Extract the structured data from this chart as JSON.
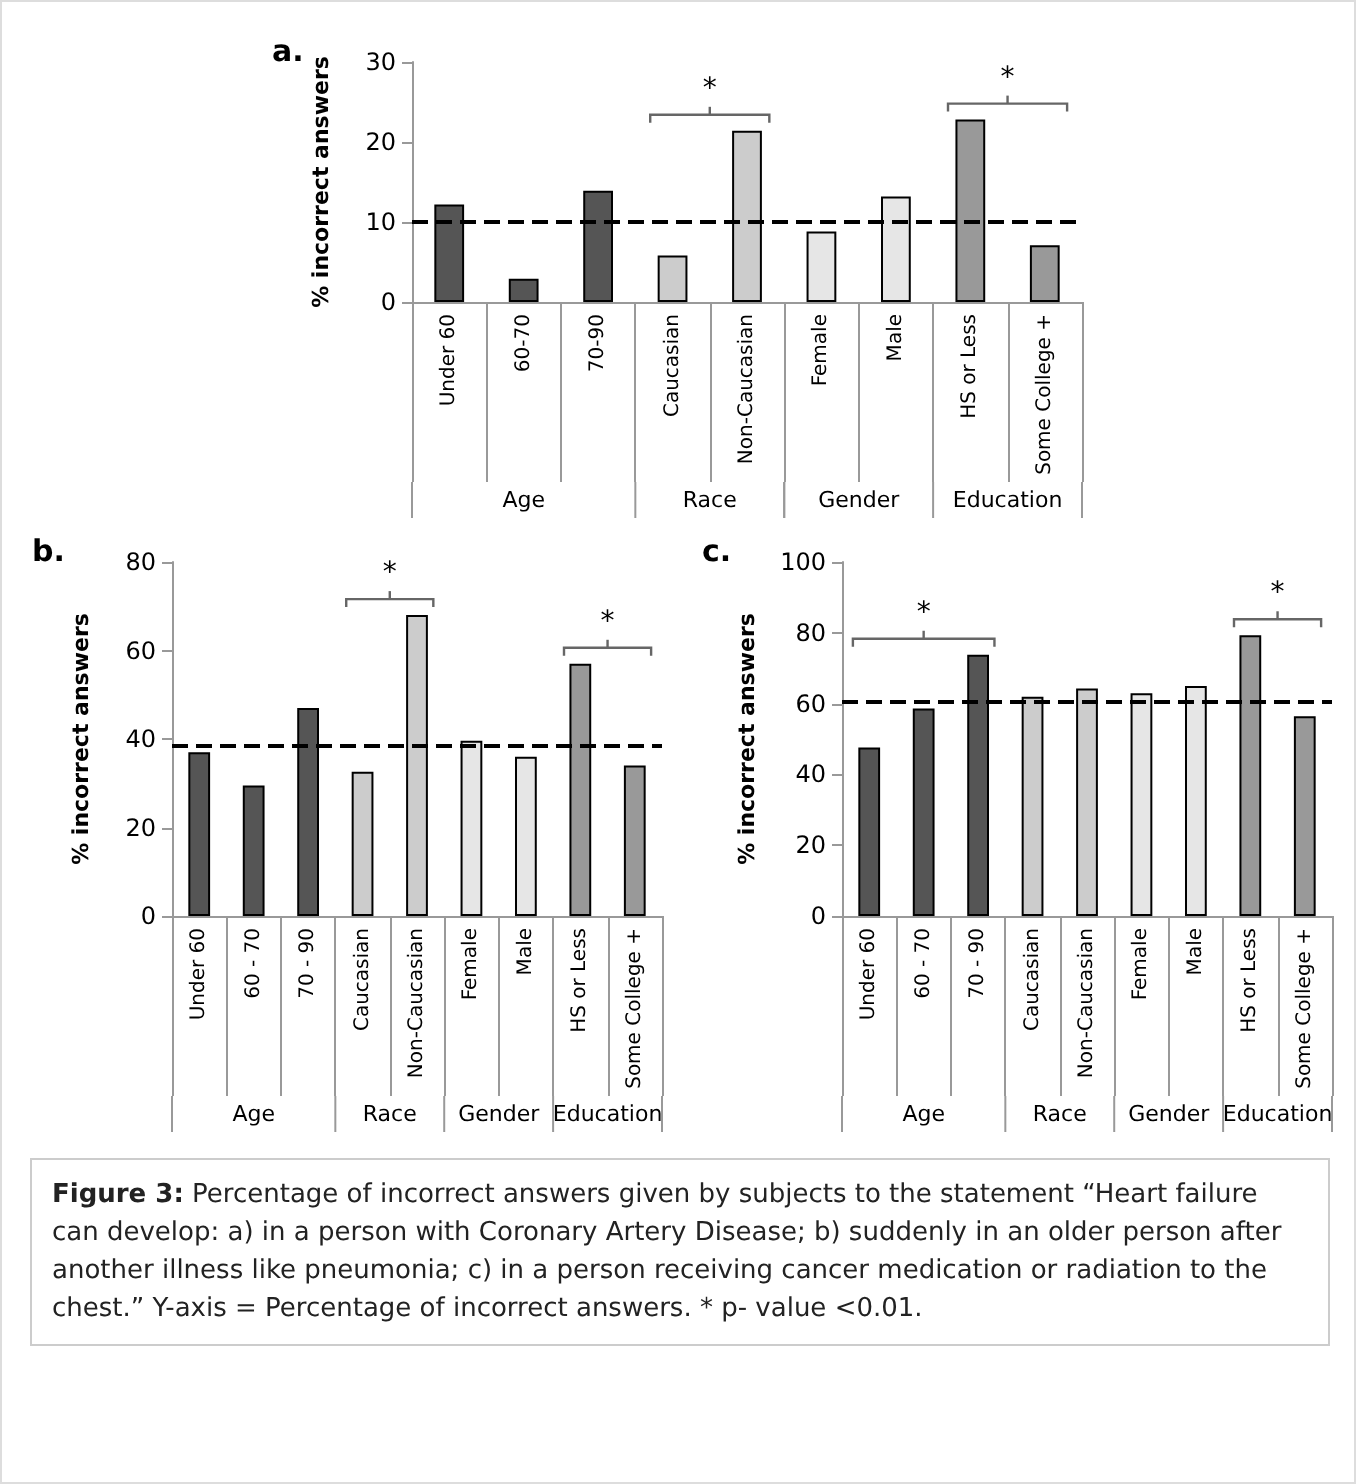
{
  "chart_data": [
    {
      "type": "bar",
      "title": "a.",
      "ylabel": "% incorrect answers",
      "categories": [
        "Under 60",
        "60-70",
        "70-90",
        "Caucasian",
        "Non-Caucasian",
        "Female",
        "Male",
        "HS or Less",
        "Some College +"
      ],
      "values": [
        12.2,
        2.9,
        13.9,
        5.8,
        21.4,
        8.8,
        13.2,
        22.8,
        7.1
      ],
      "colors": [
        "#555555",
        "#555555",
        "#555555",
        "#cccccc",
        "#cccccc",
        "#e6e6e6",
        "#e6e6e6",
        "#999999",
        "#999999"
      ],
      "ylim": [
        0,
        30
      ],
      "yticks": [
        0,
        10,
        20,
        30
      ],
      "grid": false,
      "ref_lines": [
        {
          "axis": "y",
          "value": 10,
          "color": "#000000",
          "line_style": "dashed"
        }
      ],
      "annotations": [
        "*",
        "*",
        "Age",
        "Race",
        "Gender",
        "Education"
      ]
    },
    {
      "type": "bar",
      "title": "b.",
      "ylabel": "% incorrect answers",
      "categories": [
        "Under 60",
        "60 - 70",
        "70 - 90",
        "Caucasian",
        "Non-Caucasian",
        "Female",
        "Male",
        "HS or Less",
        "Some College +"
      ],
      "values": [
        37,
        29.5,
        47,
        32.6,
        68,
        39.6,
        36,
        57,
        34
      ],
      "colors": [
        "#555555",
        "#555555",
        "#555555",
        "#cccccc",
        "#cccccc",
        "#e6e6e6",
        "#e6e6e6",
        "#999999",
        "#999999"
      ],
      "ylim": [
        0,
        80
      ],
      "yticks": [
        0,
        20,
        40,
        60,
        80
      ],
      "grid": false,
      "ref_lines": [
        {
          "axis": "y",
          "value": 38.5,
          "color": "#000000",
          "line_style": "dashed"
        }
      ],
      "annotations": [
        "*",
        "*",
        "Age",
        "Race",
        "Gender",
        "Education"
      ]
    },
    {
      "type": "bar",
      "title": "c.",
      "ylabel": "% incorrect answers",
      "categories": [
        "Under 60",
        "60 - 70",
        "70 - 90",
        "Caucasian",
        "Non-Caucasian",
        "Female",
        "Male",
        "HS or Less",
        "Some College +"
      ],
      "values": [
        47.6,
        58.6,
        73.8,
        61.9,
        64.3,
        62.9,
        65,
        79.3,
        56.4
      ],
      "colors": [
        "#555555",
        "#555555",
        "#555555",
        "#cccccc",
        "#cccccc",
        "#e6e6e6",
        "#e6e6e6",
        "#999999",
        "#999999"
      ],
      "ylim": [
        0,
        100
      ],
      "yticks": [
        0,
        20,
        40,
        60,
        80,
        100
      ],
      "grid": false,
      "ref_lines": [
        {
          "axis": "y",
          "value": 60.7,
          "color": "#000000",
          "line_style": "dashed"
        }
      ],
      "annotations": [
        "*",
        "*",
        "Age",
        "Race",
        "Gender",
        "Education"
      ]
    },
    {
      "type": "other",
      "annotations": [
        "Figure 3:",
        " Percentage of incorrect answers given by subjects to the statement “Heart failure can develop: a) in a person with Coronary Artery Disease; b) suddenly in an older person after another illness like pneumonia; c) in a person receiving cancer medication or radiation to the chest.” Y-axis = Percentage of incorrect answers. * p- value <0.01."
      ]
    }
  ]
}
